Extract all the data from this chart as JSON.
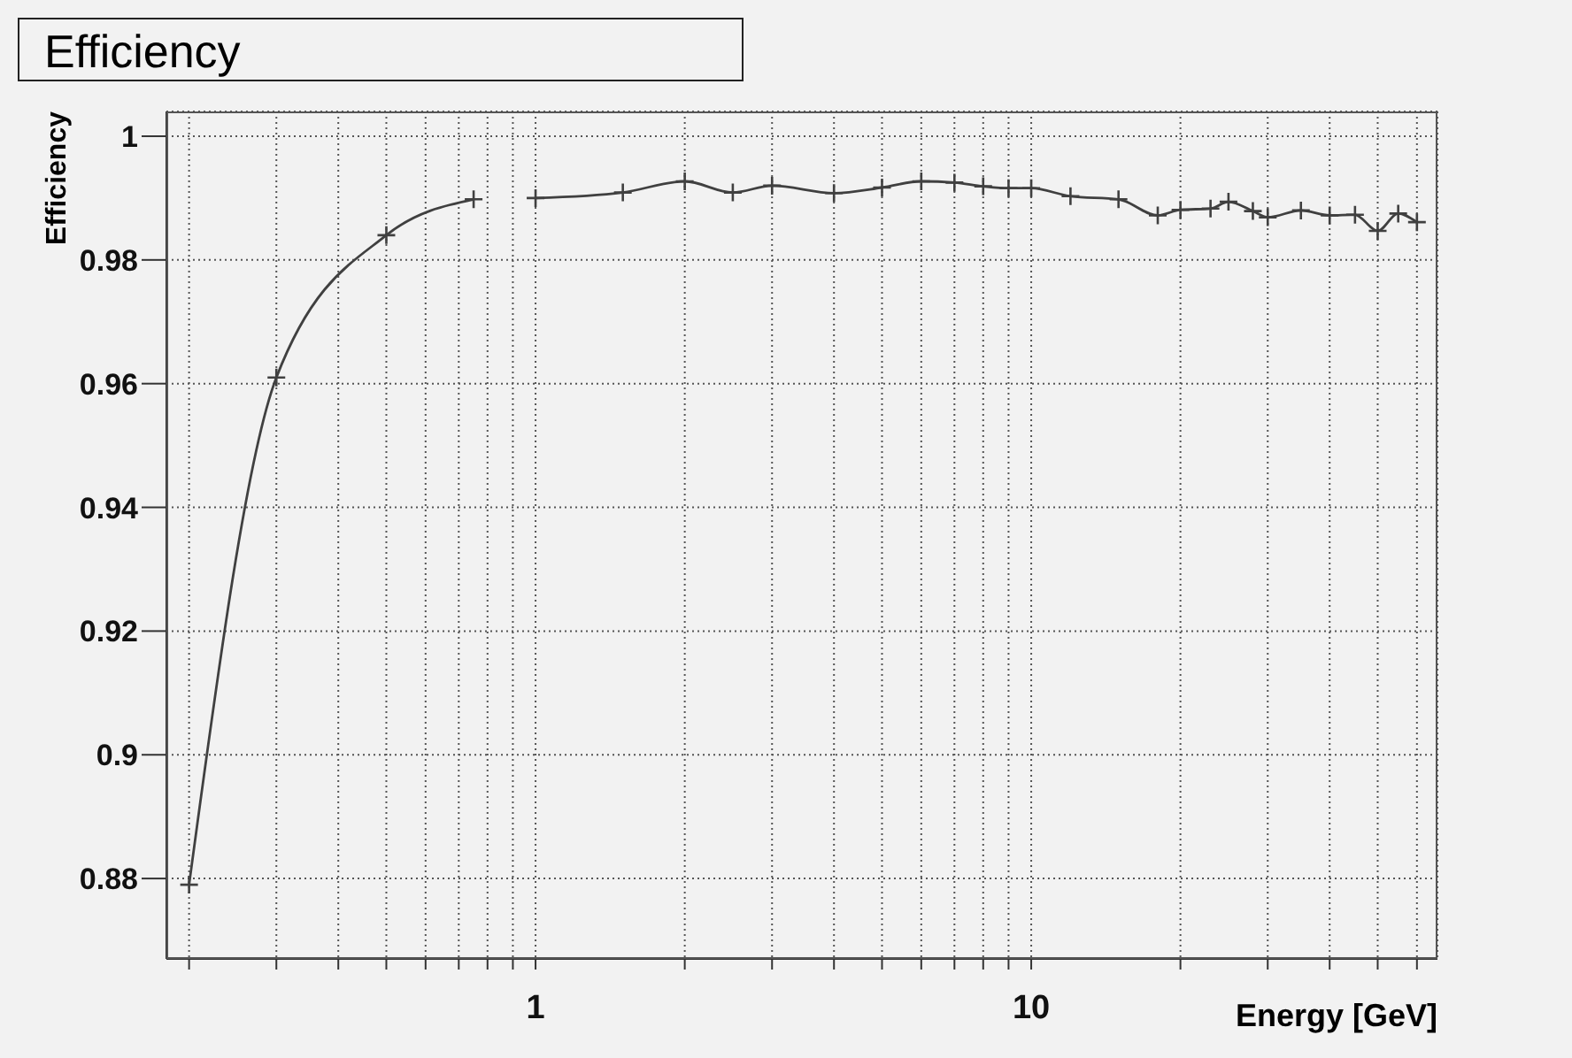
{
  "chart_data": {
    "type": "line",
    "title": "Efficiency",
    "xlabel": "Energy [GeV]",
    "ylabel": "Efficiency",
    "log": "x",
    "grid": true,
    "marker": "cross",
    "line_style": "solid",
    "xlim": [
      0.18,
      66
    ],
    "ylim": [
      0.867,
      1.004
    ],
    "xticks": [
      {
        "value": 0.2,
        "label": null
      },
      {
        "value": 0.3,
        "label": null
      },
      {
        "value": 0.4,
        "label": null
      },
      {
        "value": 0.5,
        "label": null
      },
      {
        "value": 0.6,
        "label": null
      },
      {
        "value": 0.7,
        "label": null
      },
      {
        "value": 0.8,
        "label": null
      },
      {
        "value": 0.9,
        "label": null
      },
      1,
      {
        "value": 2,
        "label": null
      },
      {
        "value": 3,
        "label": null
      },
      {
        "value": 4,
        "label": null
      },
      {
        "value": 5,
        "label": null
      },
      {
        "value": 6,
        "label": null
      },
      {
        "value": 7,
        "label": null
      },
      {
        "value": 8,
        "label": null
      },
      {
        "value": 9,
        "label": null
      },
      10,
      {
        "value": 20,
        "label": null
      },
      {
        "value": 30,
        "label": null
      },
      {
        "value": 40,
        "label": null
      },
      {
        "value": 50,
        "label": null
      },
      {
        "value": 60,
        "label": null
      }
    ],
    "yticks": [
      0.88,
      0.9,
      0.92,
      0.94,
      0.96,
      0.98,
      1
    ],
    "series": [
      {
        "color": "#404040",
        "x": [
          0.2,
          0.3,
          0.5,
          0.75,
          0.8,
          1,
          1.5,
          2,
          2.5,
          3,
          4,
          5,
          6,
          7,
          8,
          9,
          10,
          12,
          15,
          18,
          20,
          23,
          25,
          28,
          30,
          35,
          40,
          45,
          50,
          55,
          60
        ],
        "values": [
          0.879,
          0.961,
          0.984,
          0.9898,
          null,
          0.99,
          0.9909,
          0.9927,
          0.9909,
          0.992,
          0.9908,
          0.9917,
          0.9927,
          0.9925,
          0.9919,
          0.9916,
          0.9916,
          0.9903,
          0.9898,
          0.9872,
          0.9881,
          0.9883,
          0.9894,
          0.9879,
          0.9869,
          0.988,
          0.9872,
          0.9873,
          0.9847,
          0.9875,
          0.9861
        ]
      }
    ]
  }
}
